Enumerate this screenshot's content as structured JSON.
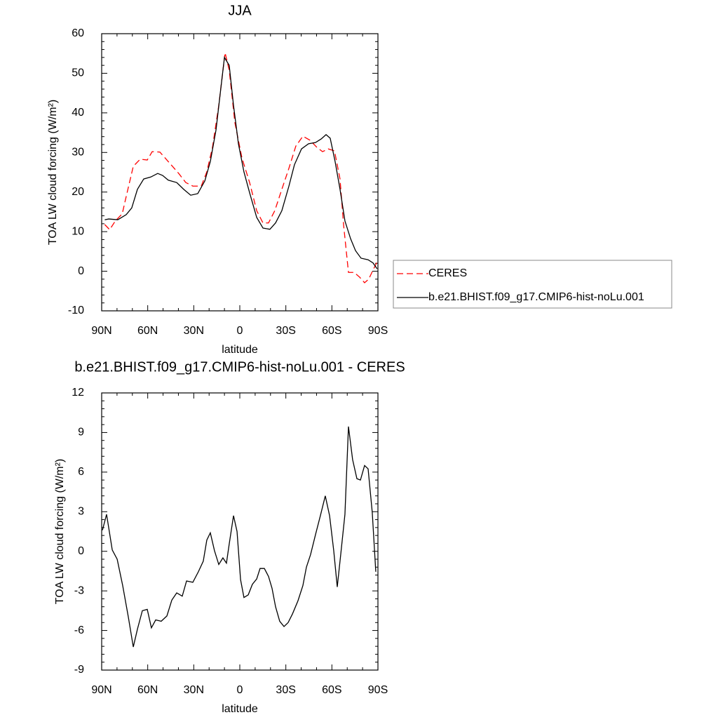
{
  "chart_data": [
    {
      "type": "line",
      "title": "JJA",
      "x_label": "latitude",
      "y_label": "TOA LW cloud forcing (W/m²)",
      "xlim": [
        90,
        -90
      ],
      "xticks": [
        {
          "value": 90,
          "label": "90N"
        },
        {
          "value": 60,
          "label": "60N"
        },
        {
          "value": 30,
          "label": "30N"
        },
        0,
        {
          "value": -30,
          "label": "30S"
        },
        {
          "value": -60,
          "label": "60S"
        },
        {
          "value": -90,
          "label": "90S"
        }
      ],
      "ylim": [
        -10,
        60
      ],
      "yticks": [
        -10,
        0,
        10,
        20,
        30,
        40,
        50,
        60
      ],
      "legend": "outside-right",
      "series": [
        {
          "name": "CERES",
          "color": "#ff0000",
          "line_style": "dashed",
          "x": [
            88,
            84.8,
            81.1,
            76.6,
            74,
            69.4,
            64.9,
            60.3,
            57.1,
            52.1,
            46.6,
            39.8,
            35.2,
            30.6,
            25.1,
            21.5,
            17.8,
            13.7,
            9.6,
            6.9,
            3.2,
            -1.4,
            -6.4,
            -11,
            -15.1,
            -18.7,
            -22.8,
            -27.4,
            -32,
            -36.5,
            -41.1,
            -45.7,
            -50.2,
            -53.9,
            -57.6,
            -61.7,
            -65.3,
            -67.6,
            -70.8,
            -74.5,
            -78.1,
            -81.3,
            -84,
            -86.8,
            -89.5
          ],
          "values": [
            11.8,
            10.5,
            12.7,
            14.5,
            18.9,
            26.5,
            28.3,
            28.1,
            30.2,
            30.1,
            27.7,
            24.7,
            22.4,
            21.5,
            21.5,
            25.1,
            31.3,
            41.9,
            55.2,
            50.8,
            37.5,
            28.6,
            22.4,
            15.3,
            12.2,
            12.2,
            15.3,
            20.7,
            26.0,
            31.6,
            34.1,
            33.1,
            31.3,
            30.2,
            30.9,
            30.4,
            23.3,
            11.8,
            -0.3,
            -0.3,
            -1.5,
            -2.9,
            -2.0,
            0.3,
            2.4
          ]
        },
        {
          "name": "b.e21.BHIST.f09_g17.CMIP6-hist-noLu.001",
          "color": "#000000",
          "line_style": "solid",
          "x": [
            88,
            85.4,
            79.5,
            74,
            70.4,
            66.7,
            62.6,
            58,
            53.5,
            50.3,
            46.6,
            41.1,
            36.6,
            32,
            27.4,
            22.8,
            19.2,
            15.5,
            12.3,
            10,
            6.9,
            4.1,
            0.9,
            -2.7,
            -6.4,
            -11,
            -15.1,
            -19.6,
            -23.3,
            -27.4,
            -32,
            -35.6,
            -40.2,
            -44.8,
            -49.3,
            -53,
            -56.2,
            -58.9,
            -62.1,
            -65.3,
            -68.5,
            -72.2,
            -75.4,
            -79,
            -83.6,
            -86.8,
            -89.5
          ],
          "values": [
            13.0,
            13.2,
            13.0,
            14.3,
            16.0,
            20.7,
            23.3,
            23.8,
            24.7,
            24.2,
            23.0,
            22.4,
            20.7,
            19.2,
            19.6,
            22.8,
            27.7,
            35.7,
            46.4,
            54.0,
            52.0,
            41.9,
            32.2,
            25.1,
            19.8,
            13.6,
            10.9,
            10.6,
            12.2,
            15.3,
            21.5,
            26.9,
            30.9,
            32.2,
            32.5,
            33.4,
            34.5,
            33.6,
            27.7,
            20.7,
            12.7,
            8.2,
            5.2,
            3.3,
            2.9,
            2.1,
            0.6
          ]
        }
      ]
    },
    {
      "type": "line",
      "title": "b.e21.BHIST.f09_g17.CMIP6-hist-noLu.001 - CERES",
      "x_label": "latitude",
      "y_label": "TOA LW cloud forcing (W/m²)",
      "xlim": [
        90,
        -90
      ],
      "xticks": [
        {
          "value": 90,
          "label": "90N"
        },
        {
          "value": 60,
          "label": "60N"
        },
        {
          "value": 30,
          "label": "30N"
        },
        0,
        {
          "value": -30,
          "label": "30S"
        },
        {
          "value": -60,
          "label": "60S"
        },
        {
          "value": -90,
          "label": "90S"
        }
      ],
      "ylim": [
        -9,
        12
      ],
      "yticks": [
        -9,
        -6,
        -3,
        0,
        3,
        6,
        9,
        12
      ],
      "color": "#000000",
      "x": [
        89.5,
        86.8,
        83.1,
        79.9,
        76.3,
        72.6,
        69.4,
        66.7,
        63.5,
        60.3,
        57.6,
        54.8,
        51.2,
        47.5,
        44.3,
        41.1,
        37.5,
        34.7,
        30.6,
        27,
        23.8,
        21.5,
        19.2,
        16.5,
        13.7,
        11,
        8.7,
        6.9,
        4.1,
        1.8,
        -0.5,
        -2.7,
        -5.5,
        -8.2,
        -11,
        -13.2,
        -16,
        -18.7,
        -21,
        -23.3,
        -26,
        -28.8,
        -31.5,
        -34.3,
        -37.9,
        -41.1,
        -43.4,
        -46.1,
        -49.3,
        -52.5,
        -55.7,
        -58.5,
        -61.2,
        -63.5,
        -65.8,
        -68.5,
        -70.8,
        -73.5,
        -76.3,
        -78.6,
        -81.3,
        -83.6,
        -86.3,
        -88.6
      ],
      "values": [
        1.6,
        2.8,
        0.1,
        -0.6,
        -2.6,
        -5.0,
        -7.25,
        -5.9,
        -4.5,
        -4.4,
        -5.8,
        -5.2,
        -5.3,
        -4.9,
        -3.7,
        -3.15,
        -3.4,
        -2.25,
        -2.35,
        -1.55,
        -0.75,
        0.85,
        1.4,
        0.05,
        -1.0,
        -0.5,
        -0.9,
        0.55,
        2.7,
        1.5,
        -2.15,
        -3.5,
        -3.3,
        -2.5,
        -2.1,
        -1.3,
        -1.3,
        -1.9,
        -2.8,
        -4.2,
        -5.3,
        -5.7,
        -5.4,
        -4.75,
        -3.75,
        -2.6,
        -1.2,
        -0.25,
        1.25,
        2.7,
        4.2,
        2.7,
        0.05,
        -2.7,
        -0.2,
        2.8,
        9.45,
        6.95,
        5.5,
        5.4,
        6.5,
        6.25,
        2.95,
        -1.55
      ]
    }
  ]
}
